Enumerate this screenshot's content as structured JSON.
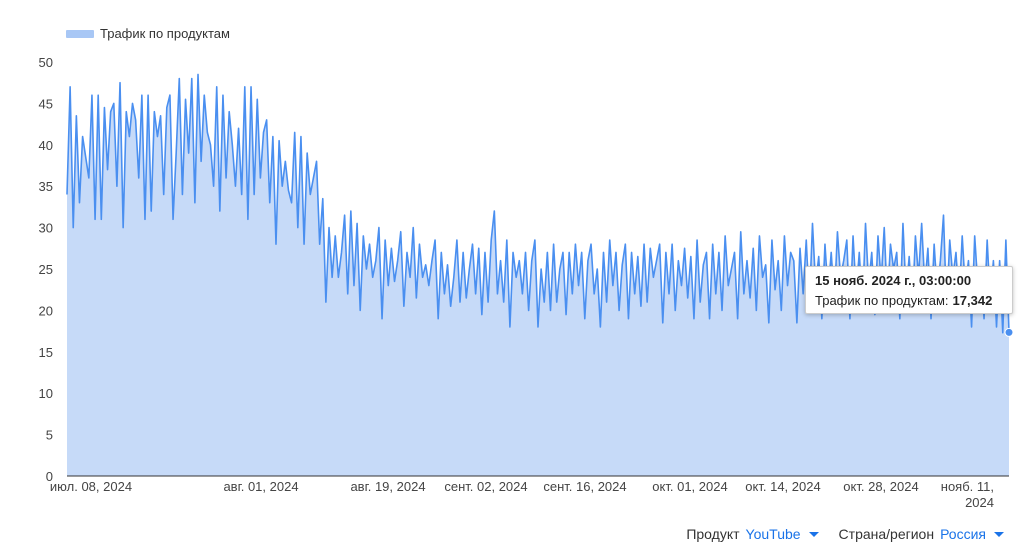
{
  "chart_data": {
    "type": "area",
    "series": [
      {
        "name": "Трафик по продуктам",
        "values": [
          34.0,
          47.0,
          30.0,
          43.5,
          33.0,
          41.0,
          38.5,
          36.0,
          46.0,
          31.0,
          46.0,
          31.0,
          44.5,
          37.0,
          44.0,
          45.0,
          35.0,
          47.5,
          30.0,
          44.0,
          41.0,
          45.0,
          43.0,
          36.0,
          46.0,
          31.0,
          46.0,
          32.0,
          44.0,
          41.0,
          43.5,
          34.0,
          44.5,
          46.0,
          31.0,
          39.0,
          48.0,
          34.0,
          45.5,
          39.0,
          48.0,
          33.0,
          48.5,
          38.0,
          46.0,
          41.5,
          40.0,
          35.0,
          47.0,
          32.0,
          46.0,
          36.0,
          44.0,
          40.0,
          35.0,
          42.0,
          34.0,
          47.0,
          31.0,
          47.0,
          34.0,
          45.5,
          36.0,
          41.5,
          43.0,
          33.0,
          41.0,
          28.0,
          40.5,
          35.0,
          38.0,
          34.5,
          33.0,
          41.5,
          30.0,
          41.0,
          28.0,
          39.0,
          34.0,
          36.0,
          38.0,
          28.0,
          33.5,
          21.0,
          30.0,
          24.0,
          29.0,
          24.0,
          27.0,
          31.5,
          22.0,
          32.0,
          23.0,
          30.5,
          20.0,
          29.0,
          25.0,
          28.0,
          24.0,
          26.0,
          30.0,
          19.0,
          28.5,
          23.0,
          27.5,
          23.5,
          26.0,
          29.5,
          20.5,
          27.0,
          24.0,
          30.0,
          21.5,
          28.0,
          24.0,
          25.5,
          23.0,
          26.0,
          28.5,
          19.0,
          27.0,
          22.0,
          25.5,
          20.5,
          24.0,
          28.5,
          21.0,
          27.0,
          21.5,
          25.0,
          28.0,
          22.0,
          27.5,
          19.5,
          27.0,
          21.0,
          28.5,
          32.0,
          22.0,
          26.0,
          21.0,
          28.5,
          18.0,
          27.0,
          24.0,
          26.0,
          22.0,
          27.0,
          20.0,
          26.0,
          28.5,
          18.0,
          25.0,
          21.0,
          27.0,
          20.0,
          28.0,
          21.0,
          25.0,
          27.0,
          19.5,
          27.0,
          22.0,
          28.0,
          23.0,
          27.0,
          19.0,
          26.0,
          28.0,
          22.0,
          25.0,
          18.0,
          27.0,
          21.0,
          28.5,
          23.0,
          27.0,
          20.0,
          25.5,
          28.0,
          19.0,
          27.0,
          22.0,
          26.5,
          20.5,
          28.0,
          21.0,
          27.5,
          24.0,
          26.0,
          28.0,
          18.5,
          27.0,
          22.0,
          28.0,
          20.0,
          26.0,
          23.0,
          27.5,
          21.5,
          26.5,
          19.0,
          28.5,
          21.0,
          25.5,
          27.0,
          19.0,
          28.0,
          22.0,
          27.0,
          20.0,
          29.0,
          23.0,
          25.0,
          27.0,
          19.0,
          29.5,
          22.0,
          26.0,
          21.5,
          27.5,
          20.0,
          29.0,
          24.0,
          25.5,
          18.5,
          28.5,
          22.5,
          26.0,
          20.0,
          29.0,
          23.0,
          27.0,
          26.0,
          18.5,
          27.5,
          22.0,
          28.5,
          20.5,
          30.5,
          23.0,
          26.5,
          19.0,
          28.0,
          22.0,
          27.0,
          21.0,
          29.5,
          24.0,
          26.0,
          28.5,
          19.0,
          29.0,
          22.0,
          27.0,
          20.0,
          30.5,
          23.0,
          27.0,
          19.5,
          29.0,
          23.5,
          30.0,
          21.0,
          28.0,
          25.0,
          27.0,
          19.0,
          30.5,
          22.0,
          26.5,
          20.0,
          29.0,
          24.0,
          30.5,
          23.0,
          27.5,
          19.0,
          28.0,
          22.0,
          26.0,
          31.5,
          20.0,
          28.5,
          24.0,
          27.0,
          21.0,
          29.0,
          22.5,
          26.0,
          18.0,
          29.0,
          23.0,
          25.0,
          19.0,
          28.5,
          21.0,
          26.0,
          18.0,
          26.0,
          17.3,
          28.5,
          17.342
        ]
      }
    ],
    "x_start": "2024-06-29",
    "x_end": "2024-11-15",
    "x_tick_labels": [
      {
        "label": "июл. 08, 2024",
        "index": 0
      },
      {
        "label": "авг. 01, 2024",
        "index": 1
      },
      {
        "label": "авг. 19, 2024",
        "index": 2
      },
      {
        "label": "сент. 02, 2024",
        "index": 3
      },
      {
        "label": "сент. 16, 2024",
        "index": 4
      },
      {
        "label": "окт. 01, 2024",
        "index": 5
      },
      {
        "label": "окт. 14, 2024",
        "index": 6
      },
      {
        "label": "окт. 28, 2024",
        "index": 7
      },
      {
        "label": "нояб. 11,\n2024",
        "index": 8
      }
    ],
    "y_ticks": [
      "0",
      "5",
      "10",
      "15",
      "20",
      "25",
      "30",
      "35",
      "40",
      "45",
      "50"
    ],
    "ylim": [
      0,
      50
    ],
    "grid": false,
    "legend_position": "top-left",
    "colors": {
      "line": "#4a8ff0",
      "fill": "#c6daf8",
      "legend": "#a8c7f5"
    },
    "tooltip": {
      "title": "15 нояб. 2024 г., 03:00:00",
      "series_label": "Трафик по продуктам:",
      "value": "17,342"
    }
  },
  "filters": [
    {
      "label": "Продукт",
      "value": "YouTube"
    },
    {
      "label": "Страна/регион",
      "value": "Россия"
    }
  ]
}
